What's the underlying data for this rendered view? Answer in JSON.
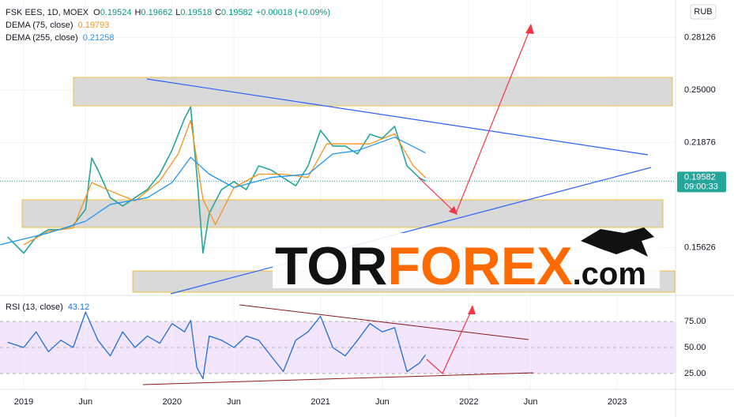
{
  "chart_data": [
    {
      "type": "line",
      "title": "FSK EES, 1D, MOEX",
      "currency": "RUB",
      "ohlc": [
        {
          "label": "O",
          "value": 0.19524
        },
        {
          "label": "H",
          "value": 0.19662
        },
        {
          "label": "L",
          "value": 0.19518
        },
        {
          "label": "C",
          "value": 0.19582
        }
      ],
      "change": "+0.00018 (+0.09%)",
      "last_price": 0.19582,
      "countdown": "09:00:33",
      "watermark": [
        "TOR",
        "FOREX",
        ".com"
      ],
      "xlim": [
        -1.92,
        52.72
      ],
      "ylim": [
        0.1288,
        0.3036
      ],
      "grid": true,
      "yticks": [
        0.28126,
        {
          "value": 0.25,
          "label": "0.25000"
        },
        0.21876,
        0.15626
      ],
      "series": [
        {
          "name": "FSK EES, 1D, MOEX",
          "color": "#26a69a",
          "x": [
            -1.3,
            0,
            1,
            2,
            3,
            4,
            5,
            5.5,
            6,
            7,
            8,
            9,
            10,
            11,
            12,
            13,
            13.5,
            14,
            14.5,
            15,
            16,
            17,
            18,
            19,
            20,
            21,
            22,
            23,
            24,
            25,
            26,
            27,
            28,
            29,
            30,
            31,
            32,
            32.5
          ],
          "values": [
            0.1626,
            0.153,
            0.1626,
            0.167,
            0.167,
            0.1696,
            0.179,
            0.2096,
            0.2025,
            0.186,
            0.181,
            0.186,
            0.1908,
            0.2,
            0.2143,
            0.233,
            0.24,
            0.2,
            0.153,
            0.1767,
            0.1908,
            0.1955,
            0.1908,
            0.2049,
            0.2025,
            0.1978,
            0.1931,
            0.2049,
            0.226,
            0.2167,
            0.2167,
            0.212,
            0.2237,
            0.2213,
            0.2284,
            0.2049,
            0.1978,
            0.19582
          ]
        },
        {
          "name": "DEMA (75, close)",
          "color": "#f7931a",
          "last": 0.19793,
          "x": [
            0,
            2,
            4,
            5.5,
            7,
            9,
            11,
            12.5,
            13.5,
            14.5,
            15.5,
            17,
            19,
            21,
            23,
            24.5,
            26,
            28,
            30,
            31.5,
            32.5
          ],
          "values": [
            0.158,
            0.166,
            0.168,
            0.195,
            0.19,
            0.184,
            0.196,
            0.212,
            0.232,
            0.185,
            0.17,
            0.192,
            0.2,
            0.2,
            0.198,
            0.218,
            0.218,
            0.218,
            0.224,
            0.205,
            0.19793
          ]
        },
        {
          "name": "DEMA (255, close)",
          "color": "#2196f3",
          "last": 0.21258,
          "x": [
            -1.9,
            2,
            5,
            7,
            10,
            12,
            13.5,
            15,
            17,
            20,
            23,
            25,
            27,
            30,
            32.5
          ],
          "values": [
            0.158,
            0.165,
            0.172,
            0.182,
            0.186,
            0.195,
            0.21,
            0.2,
            0.192,
            0.198,
            0.2,
            0.212,
            0.214,
            0.222,
            0.21258
          ]
        }
      ]
    },
    {
      "type": "line",
      "title": "RSI (13, close)",
      "xlim": [
        -1.92,
        52.72
      ],
      "ylim": [
        10.6,
        98.5
      ],
      "yticks": [
        {
          "value": 75,
          "label": "75.00"
        },
        {
          "value": 50,
          "label": "50.00"
        },
        {
          "value": 25,
          "label": "25.00"
        }
      ],
      "xticks": [
        {
          "value": 0,
          "label": "2019"
        },
        {
          "value": 5,
          "label": "Jun"
        },
        {
          "value": 12,
          "label": "2020"
        },
        {
          "value": 17,
          "label": "Jun"
        },
        {
          "value": 24,
          "label": "2021"
        },
        {
          "value": 29,
          "label": "Jun"
        },
        {
          "value": 36,
          "label": "2022"
        },
        {
          "value": 41,
          "label": "Jun"
        },
        {
          "value": 48,
          "label": "2023"
        }
      ],
      "series": [
        {
          "name": "RSI (13, close)",
          "color": "#1e6fd9",
          "last": 43.12,
          "x": [
            -1.3,
            0,
            1,
            2,
            3,
            4,
            5,
            6,
            7,
            8,
            9,
            10,
            11,
            12,
            13,
            13.5,
            14,
            14.5,
            15,
            16,
            17,
            18,
            19,
            20,
            21,
            22,
            23,
            24,
            25,
            26,
            27,
            28,
            29,
            30,
            31,
            32,
            32.5
          ],
          "values": [
            55,
            50,
            65,
            46,
            57,
            50,
            84,
            57,
            42,
            65,
            50,
            61,
            54,
            73,
            65,
            76,
            31,
            20,
            61,
            57,
            50,
            61,
            57,
            42,
            27,
            57,
            65,
            80,
            50,
            42,
            57,
            73,
            65,
            69,
            27,
            35,
            43.12
          ]
        }
      ]
    }
  ]
}
